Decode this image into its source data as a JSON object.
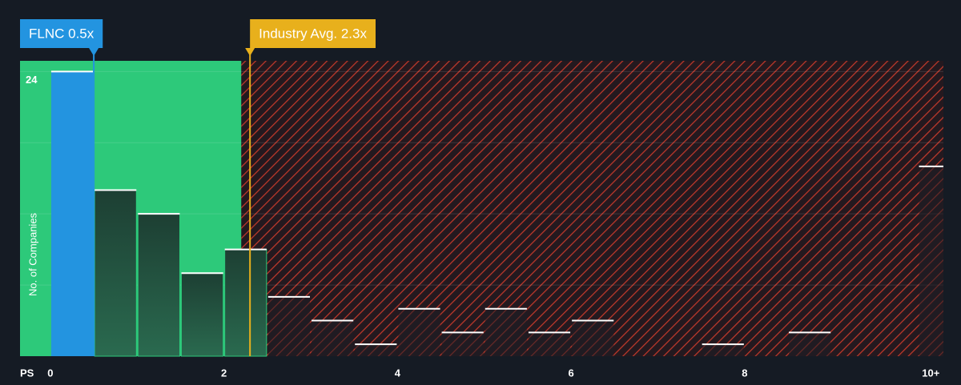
{
  "chart_data": {
    "type": "histogram",
    "x_label": "PS",
    "y_label": "No. of Companies",
    "bins": [
      0,
      0.5,
      1,
      1.5,
      2,
      2.5,
      3,
      3.5,
      4,
      4.5,
      5,
      5.5,
      6,
      6.5,
      7,
      7.5,
      8,
      8.5,
      9,
      9.5,
      10
    ],
    "values": [
      24,
      14,
      12,
      7,
      9,
      5,
      3,
      1,
      4,
      2,
      4,
      2,
      3,
      0,
      0,
      1,
      0,
      2,
      0,
      0
    ],
    "overflow": {
      "label": "10+",
      "value": 16
    },
    "xlim": [
      -0.35,
      10.29
    ],
    "ylim": [
      0,
      24.9
    ],
    "xticks": [
      0,
      2,
      4,
      6,
      8
    ],
    "yticks": [
      24
    ],
    "ygrid": [
      6,
      12,
      18,
      24
    ],
    "fair_end": 2.2,
    "subject": {
      "label": "FLNC 0.5x",
      "value": 0.5,
      "color": "#2394e0"
    },
    "industry": {
      "label": "Industry Avg. 2.3x",
      "value": 2.3,
      "color": "#e8b01c"
    },
    "colors": {
      "fair": "#2dc97a",
      "expensive": "#c0392b",
      "background": "#151b24"
    }
  }
}
